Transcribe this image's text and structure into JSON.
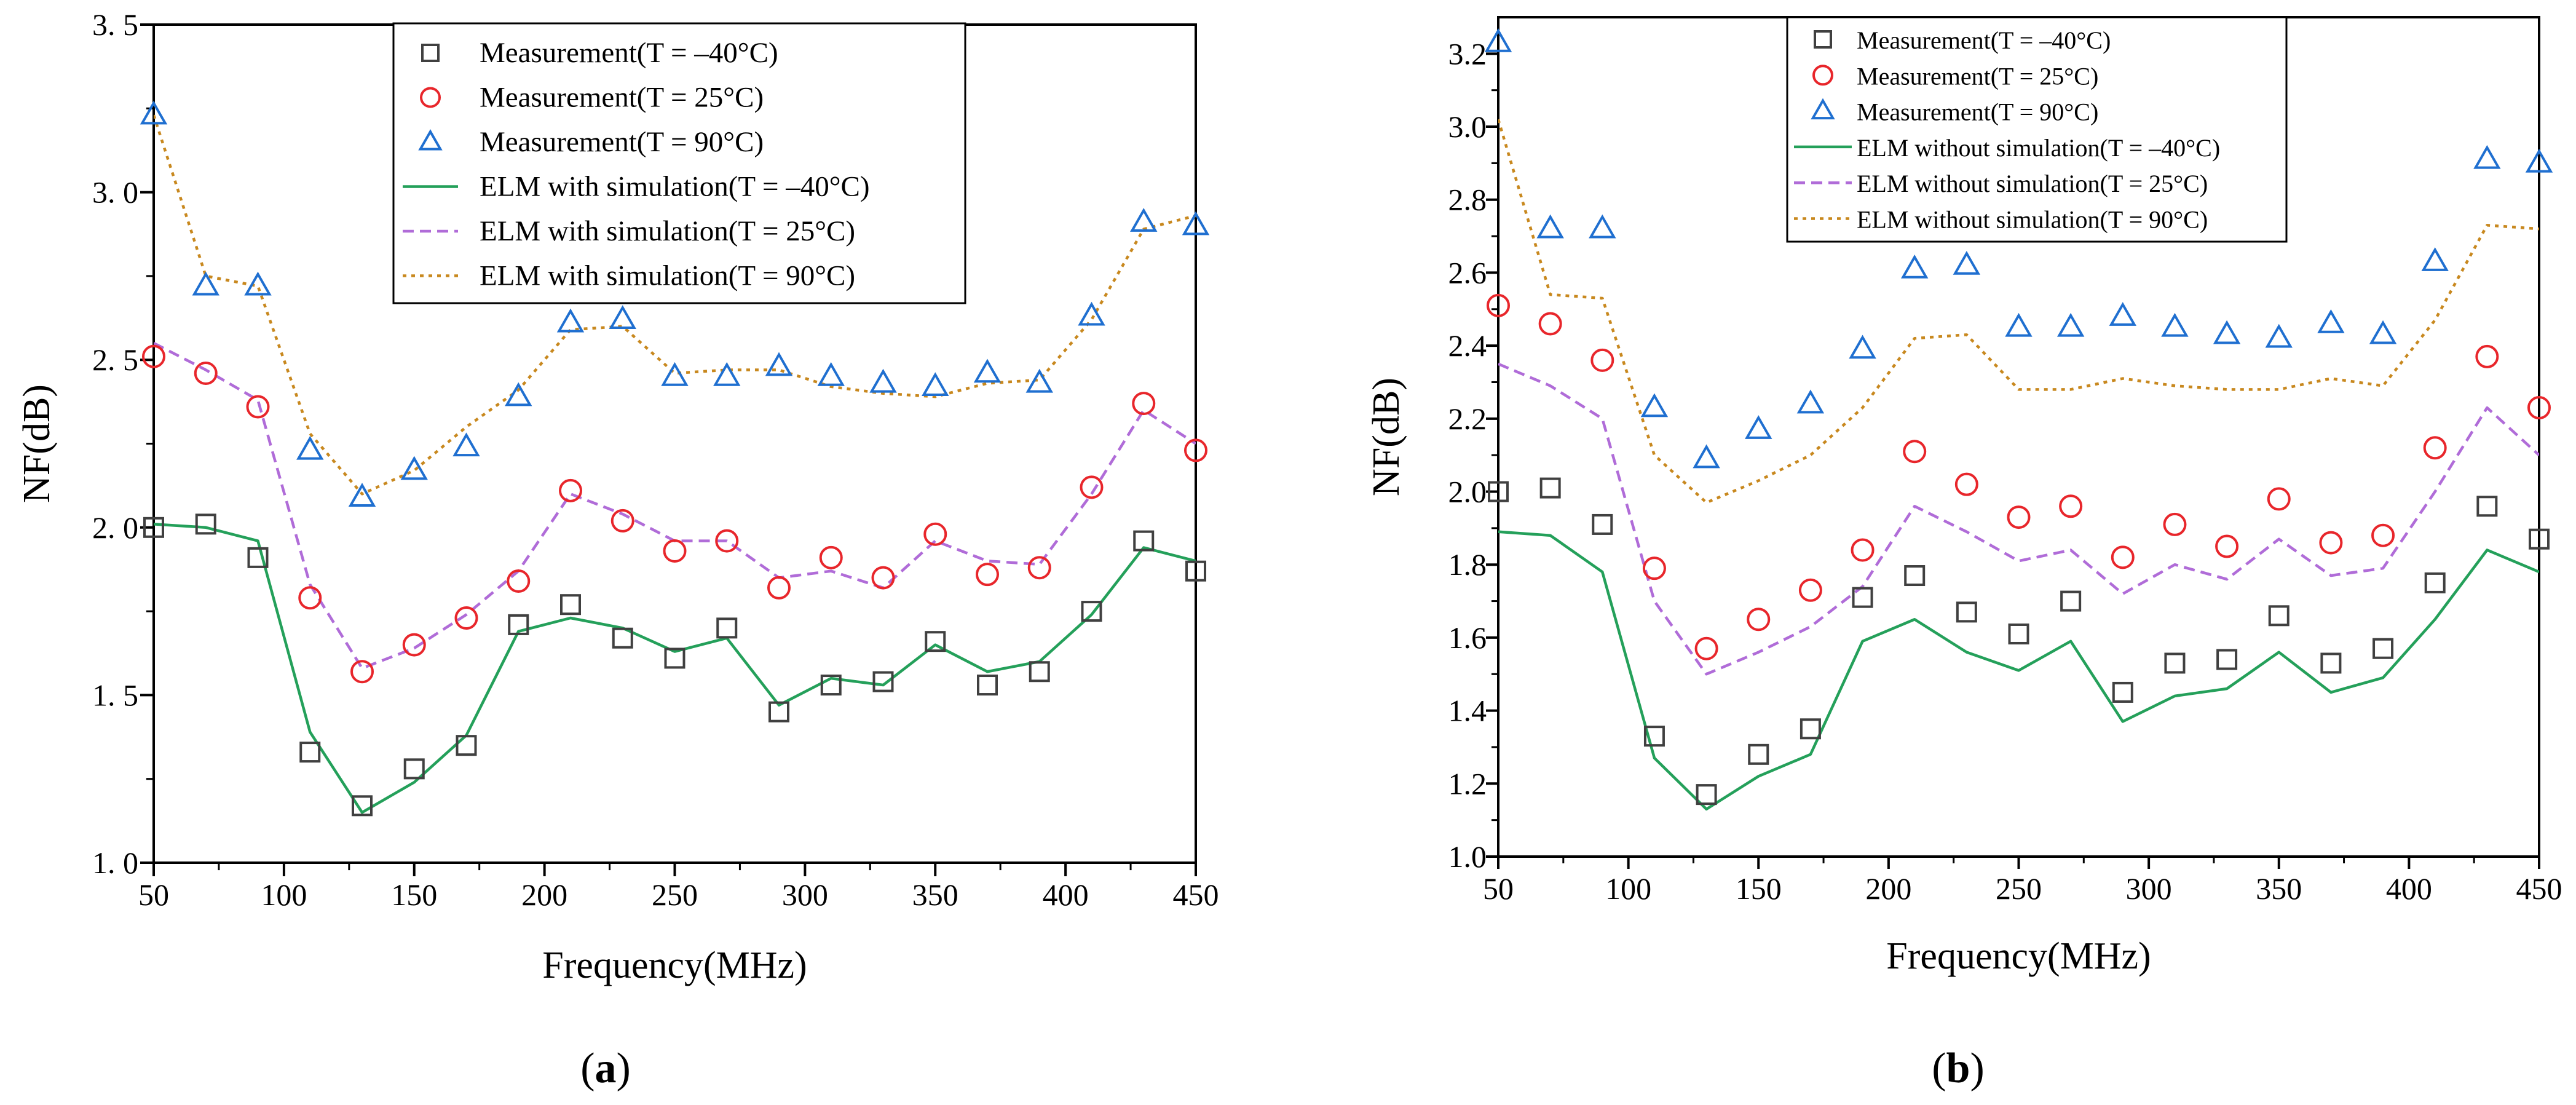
{
  "chart_data": [
    {
      "panel": "a",
      "type": "line",
      "caption": "(a)",
      "caption_letter": "a",
      "xlabel": "Frequency(MHz)",
      "ylabel": "NF(dB)",
      "xlim": [
        50,
        450
      ],
      "ylim": [
        1.0,
        3.5
      ],
      "xticks": [
        50,
        100,
        150,
        200,
        250,
        300,
        350,
        400,
        450
      ],
      "xtick_labels": [
        "50",
        "100",
        "150",
        "200",
        "250",
        "300",
        "350",
        "400",
        "450"
      ],
      "yticks": [
        1.0,
        1.5,
        2.0,
        2.5,
        3.0,
        3.5
      ],
      "ytick_labels": [
        "1. 0",
        "1. 5",
        "2. 0",
        "2. 5",
        "3. 0",
        "3. 5"
      ],
      "grid": false,
      "legend_position": "top-center",
      "x": [
        50,
        70,
        90,
        110,
        130,
        150,
        170,
        190,
        210,
        230,
        250,
        270,
        290,
        310,
        330,
        350,
        370,
        390,
        410,
        430,
        450
      ],
      "series": [
        {
          "name": "Measurement(T = –40°C)",
          "style": "scatter",
          "marker": "square",
          "color": "#404040",
          "values": [
            2.0,
            2.01,
            1.91,
            1.33,
            1.17,
            1.28,
            1.35,
            1.71,
            1.77,
            1.67,
            1.61,
            1.7,
            1.45,
            1.53,
            1.54,
            1.66,
            1.53,
            1.57,
            1.75,
            1.96,
            1.87
          ]
        },
        {
          "name": "Measurement(T = 25°C)",
          "style": "scatter",
          "marker": "circle",
          "color": "#e8262b",
          "values": [
            2.51,
            2.46,
            2.36,
            1.79,
            1.57,
            1.65,
            1.73,
            1.84,
            2.11,
            2.02,
            1.93,
            1.96,
            1.82,
            1.91,
            1.85,
            1.98,
            1.86,
            1.88,
            2.12,
            2.37,
            2.23
          ]
        },
        {
          "name": "Measurement(T = 90°C)",
          "style": "scatter",
          "marker": "triangle",
          "color": "#1f6fd0",
          "values": [
            3.23,
            2.72,
            2.72,
            2.23,
            2.09,
            2.17,
            2.24,
            2.39,
            2.61,
            2.62,
            2.45,
            2.45,
            2.48,
            2.45,
            2.43,
            2.42,
            2.46,
            2.43,
            2.63,
            2.91,
            2.9
          ]
        },
        {
          "name": "ELM with simulation(T = –40°C)",
          "style": "line",
          "dash": "solid",
          "color": "#24a05a",
          "values": [
            2.01,
            2.0,
            1.96,
            1.39,
            1.15,
            1.24,
            1.38,
            1.69,
            1.73,
            1.7,
            1.63,
            1.67,
            1.47,
            1.55,
            1.53,
            1.65,
            1.57,
            1.6,
            1.74,
            1.94,
            1.9
          ]
        },
        {
          "name": "ELM with simulation(T = 25°C)",
          "style": "line",
          "dash": "dashed",
          "color": "#b06cd8",
          "values": [
            2.55,
            2.47,
            2.38,
            1.83,
            1.58,
            1.64,
            1.74,
            1.87,
            2.1,
            2.04,
            1.96,
            1.96,
            1.85,
            1.87,
            1.82,
            1.96,
            1.9,
            1.89,
            2.1,
            2.35,
            2.25
          ]
        },
        {
          "name": "ELM with simulation(T = 90°C)",
          "style": "line",
          "dash": "dotted",
          "color": "#c8881e",
          "values": [
            3.23,
            2.75,
            2.72,
            2.28,
            2.1,
            2.17,
            2.3,
            2.41,
            2.59,
            2.6,
            2.46,
            2.47,
            2.47,
            2.42,
            2.4,
            2.39,
            2.43,
            2.44,
            2.62,
            2.89,
            2.93
          ]
        }
      ]
    },
    {
      "panel": "b",
      "type": "line",
      "caption": "(b)",
      "caption_letter": "b",
      "xlabel": "Frequency(MHz)",
      "ylabel": "NF(dB)",
      "xlim": [
        50,
        450
      ],
      "ylim": [
        1.0,
        3.3
      ],
      "xticks": [
        50,
        100,
        150,
        200,
        250,
        300,
        350,
        400,
        450
      ],
      "xtick_labels": [
        "50",
        "100",
        "150",
        "200",
        "250",
        "300",
        "350",
        "400",
        "450"
      ],
      "yticks": [
        1.0,
        1.2,
        1.4,
        1.6,
        1.8,
        2.0,
        2.2,
        2.4,
        2.6,
        2.8,
        3.0,
        3.2
      ],
      "ytick_labels": [
        "1.0",
        "1.2",
        "1.4",
        "1.6",
        "1.8",
        "2.0",
        "2.2",
        "2.4",
        "2.6",
        "2.8",
        "3.0",
        "3.2"
      ],
      "grid": false,
      "legend_position": "top-center",
      "x": [
        50,
        70,
        90,
        110,
        130,
        150,
        170,
        190,
        210,
        230,
        250,
        270,
        290,
        310,
        330,
        350,
        370,
        390,
        410,
        430,
        450
      ],
      "series": [
        {
          "name": "Measurement(T = –40°C)",
          "style": "scatter",
          "marker": "square",
          "color": "#404040",
          "values": [
            2.0,
            2.01,
            1.91,
            1.33,
            1.17,
            1.28,
            1.35,
            1.71,
            1.77,
            1.67,
            1.61,
            1.7,
            1.45,
            1.53,
            1.54,
            1.66,
            1.53,
            1.57,
            1.75,
            1.96,
            1.87
          ]
        },
        {
          "name": "Measurement(T = 25°C)",
          "style": "scatter",
          "marker": "circle",
          "color": "#e8262b",
          "values": [
            2.51,
            2.46,
            2.36,
            1.79,
            1.57,
            1.65,
            1.73,
            1.84,
            2.11,
            2.02,
            1.93,
            1.96,
            1.82,
            1.91,
            1.85,
            1.98,
            1.86,
            1.88,
            2.12,
            2.37,
            2.23
          ]
        },
        {
          "name": "Measurement(T = 90°C)",
          "style": "scatter",
          "marker": "triangle",
          "color": "#1f6fd0",
          "values": [
            3.23,
            2.72,
            2.72,
            2.23,
            2.09,
            2.17,
            2.24,
            2.39,
            2.61,
            2.62,
            2.45,
            2.45,
            2.48,
            2.45,
            2.43,
            2.42,
            2.46,
            2.43,
            2.63,
            2.91,
            2.9
          ]
        },
        {
          "name": "ELM without simulation(T = –40°C)",
          "style": "line",
          "dash": "solid",
          "color": "#24a05a",
          "values": [
            1.89,
            1.88,
            1.78,
            1.27,
            1.13,
            1.22,
            1.28,
            1.59,
            1.65,
            1.56,
            1.51,
            1.59,
            1.37,
            1.44,
            1.46,
            1.56,
            1.45,
            1.49,
            1.65,
            1.84,
            1.78
          ]
        },
        {
          "name": "ELM without simulation(T = 25°C)",
          "style": "line",
          "dash": "dashed",
          "color": "#b06cd8",
          "values": [
            2.35,
            2.29,
            2.2,
            1.7,
            1.5,
            1.56,
            1.63,
            1.74,
            1.96,
            1.89,
            1.81,
            1.84,
            1.72,
            1.8,
            1.76,
            1.87,
            1.77,
            1.79,
            2.0,
            2.23,
            2.1
          ]
        },
        {
          "name": "ELM without simulation(T = 90°C)",
          "style": "line",
          "dash": "dotted",
          "color": "#c8881e",
          "values": [
            3.02,
            2.54,
            2.53,
            2.1,
            1.97,
            2.03,
            2.1,
            2.23,
            2.42,
            2.43,
            2.28,
            2.28,
            2.31,
            2.29,
            2.28,
            2.28,
            2.31,
            2.29,
            2.47,
            2.73,
            2.72
          ]
        }
      ]
    }
  ]
}
